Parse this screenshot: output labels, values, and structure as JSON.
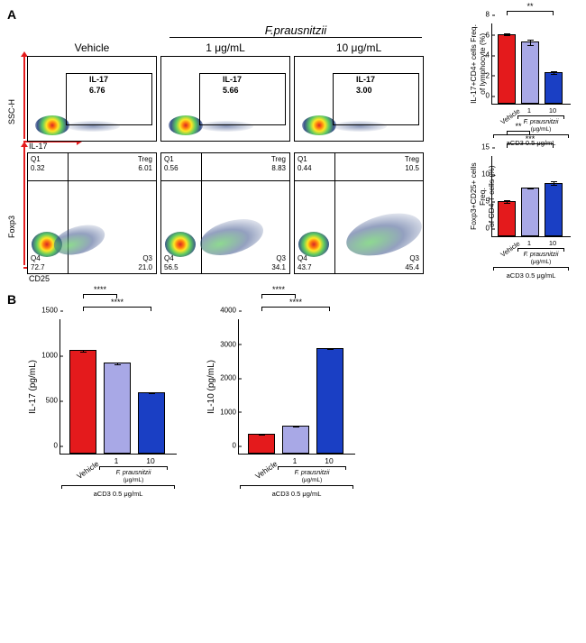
{
  "panelA": {
    "label": "A",
    "treatment_title": "F.prausnitzii",
    "columns": [
      "Vehicle",
      "1 μg/mL",
      "10 μg/mL"
    ],
    "axes": {
      "row1_y": "SSC-H",
      "row1_x": "IL-17",
      "row2_y": "Foxp3",
      "row2_x": "CD25"
    },
    "il17_plots": [
      {
        "gate_label": "IL-17",
        "value": "6.76"
      },
      {
        "gate_label": "IL-17",
        "value": "5.66"
      },
      {
        "gate_label": "IL-17",
        "value": "3.00"
      }
    ],
    "treg_plots": [
      {
        "q1": "0.32",
        "treg": "6.01",
        "q3": "21.0",
        "q4": "72.7",
        "treg_label": "Treg"
      },
      {
        "q1": "0.56",
        "treg": "8.83",
        "q3": "34.1",
        "q4": "56.5",
        "treg_label": "Treg"
      },
      {
        "q1": "0.44",
        "treg": "10.5",
        "q3": "45.4",
        "q4": "43.7",
        "treg_label": "Treg"
      }
    ],
    "bar_il17": {
      "ylabel": "IL-17+CD4+ cells Freq.\nof lymphocyte (%)",
      "ylim": [
        0,
        8
      ],
      "ytick_step": 2,
      "values": [
        6.88,
        6.1,
        3.12
      ],
      "errors": [
        0.12,
        0.3,
        0.2
      ],
      "colors": [
        "#e41a1c",
        "#a8a8e6",
        "#1a3fc4"
      ],
      "sig": [
        {
          "from": 0,
          "to": 2,
          "label": "**"
        }
      ]
    },
    "bar_treg": {
      "ylabel": "Foxp3+CD25+ cells Freq.\nof CD4 T cells (%)",
      "ylim": [
        0,
        15
      ],
      "ytick_step": 5,
      "values": [
        6.5,
        9.0,
        9.9
      ],
      "errors": [
        0.3,
        0.2,
        0.4
      ],
      "colors": [
        "#e41a1c",
        "#a8a8e6",
        "#1a3fc4"
      ],
      "sig": [
        {
          "from": 0,
          "to": 1,
          "label": "**"
        },
        {
          "from": 0,
          "to": 2,
          "label": "***"
        }
      ]
    },
    "xaxis": {
      "groups": [
        "Vehicle",
        "1",
        "10"
      ],
      "sub_label": "F. prausnitzii",
      "sub_unit": "(μg/mL)",
      "bottom_label": "aCD3 0.5 μg/mL"
    }
  },
  "panelB": {
    "label": "B",
    "il17": {
      "ylabel": "IL-17 (pg/mL)",
      "ylim": [
        0,
        1500
      ],
      "ytick_step": 500,
      "values": [
        1150,
        1010,
        680
      ],
      "errors": [
        15,
        15,
        10
      ],
      "colors": [
        "#e41a1c",
        "#a8a8e6",
        "#1a3fc4"
      ],
      "sig": [
        {
          "from": 0,
          "to": 1,
          "label": "****"
        },
        {
          "from": 0,
          "to": 2,
          "label": "****"
        }
      ]
    },
    "il10": {
      "ylabel": "IL-10 (pg/mL)",
      "ylim": [
        0,
        4000
      ],
      "ytick_step": 1000,
      "values": [
        590,
        820,
        3130
      ],
      "errors": [
        30,
        30,
        30
      ],
      "colors": [
        "#e41a1c",
        "#a8a8e6",
        "#1a3fc4"
      ],
      "sig": [
        {
          "from": 0,
          "to": 1,
          "label": "****"
        },
        {
          "from": 0,
          "to": 2,
          "label": "****"
        }
      ]
    },
    "xaxis": {
      "groups": [
        "Vehicle",
        "1",
        "10"
      ],
      "sub_label": "F. prausnitzii",
      "sub_unit": "(μg/mL)",
      "bottom_label": "aCD3 0.5 μg/mL"
    }
  },
  "q_labels": {
    "q1": "Q1",
    "q3": "Q3",
    "q4": "Q4"
  }
}
